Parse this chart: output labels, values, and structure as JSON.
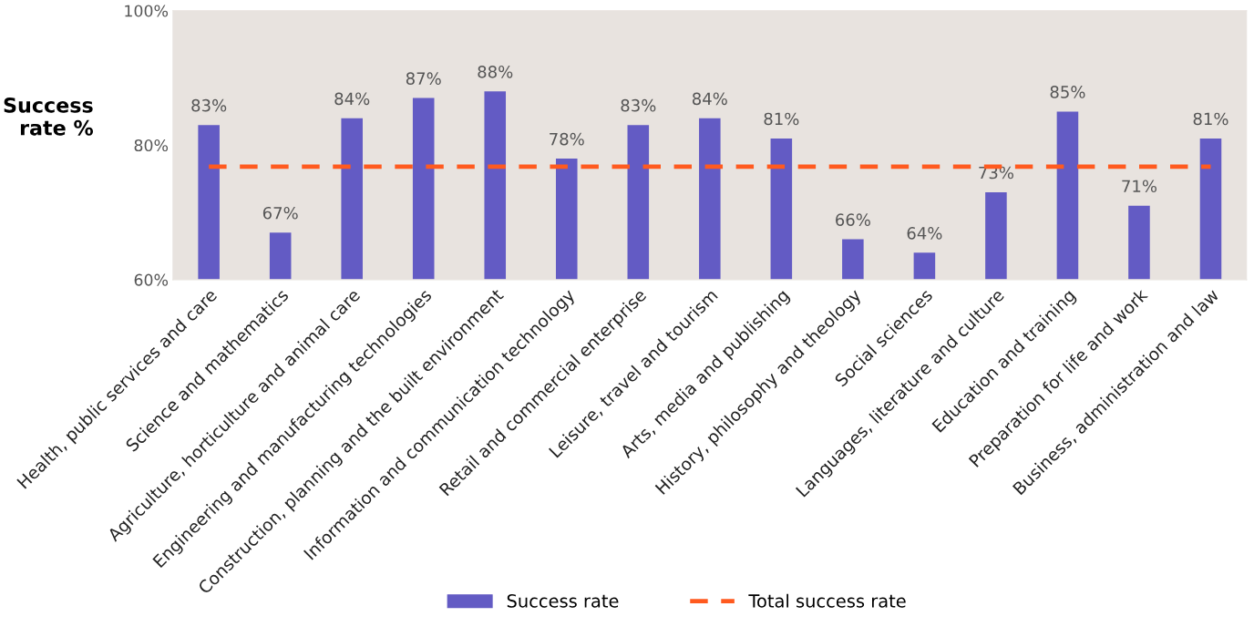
{
  "chart_data": {
    "type": "bar",
    "ylabel": "Success\nrate %",
    "categories": [
      "Health, public services and care",
      "Science and mathematics",
      "Agriculture, horticulture and animal care",
      "Engineering and manufacturing technologies",
      "Construction, planning and the built environment",
      "Information and communication technology",
      "Retail and commercial enterprise",
      "Leisure, travel and tourism",
      "Arts, media and publishing",
      "History, philosophy and theology",
      "Social sciences",
      "Languages, literature and culture",
      "Education and training",
      "Preparation for life and work",
      "Business, administration and law"
    ],
    "series": [
      {
        "name": "Success rate",
        "color": "#635bc4",
        "values": [
          83,
          67,
          84,
          87,
          88,
          78,
          83,
          84,
          81,
          66,
          64,
          73,
          85,
          71,
          81
        ],
        "value_labels": [
          "83%",
          "67%",
          "84%",
          "87%",
          "88%",
          "78%",
          "83%",
          "84%",
          "81%",
          "66%",
          "64%",
          "73%",
          "85%",
          "71%",
          "81%"
        ]
      }
    ],
    "ref_lines": [
      {
        "axis": "y",
        "value": 76.8,
        "label": "Total success rate",
        "color": "#ff5a1f",
        "line_style": "dashed"
      }
    ],
    "ylim": [
      60,
      100
    ],
    "yticks": [
      {
        "value": 60,
        "label": "60%"
      },
      {
        "value": 80,
        "label": "80%"
      },
      {
        "value": 100,
        "label": "100%"
      }
    ],
    "legend": "bottom"
  }
}
